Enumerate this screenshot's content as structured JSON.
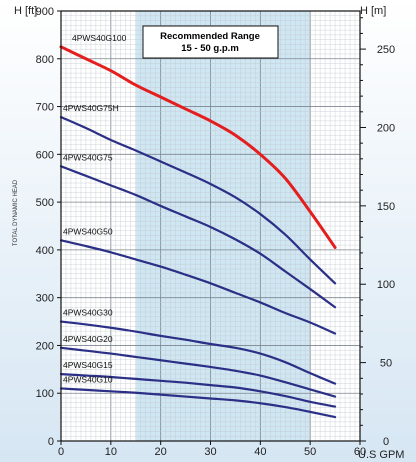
{
  "chart_data": {
    "type": "line",
    "y_left_label": "H [ft]",
    "y_right_label": "H [m]",
    "x_unit_label": "U.S GPM",
    "side_label": "TOTAL DYNAMIC HEAD",
    "xlim": [
      0,
      60
    ],
    "ylim_ft": [
      0,
      900
    ],
    "ylim_m": [
      0,
      274.3
    ],
    "x_ticks": [
      "0",
      "10",
      "20",
      "30",
      "40",
      "50",
      "60"
    ],
    "x_tick_values": [
      0,
      10,
      20,
      30,
      40,
      50,
      60
    ],
    "y_ticks_ft": [
      "0",
      "100",
      "200",
      "300",
      "400",
      "500",
      "600",
      "700",
      "800",
      "900"
    ],
    "y_tick_values_ft": [
      0,
      100,
      200,
      300,
      400,
      500,
      600,
      700,
      800,
      900
    ],
    "y_ticks_m": [
      "0",
      "50",
      "100",
      "150",
      "200",
      "250"
    ],
    "y_tick_values_m": [
      0,
      50,
      100,
      150,
      200,
      250
    ],
    "grid": true,
    "recommended_range": {
      "title": "Recommended Range",
      "subtitle": "15 - 50 g.p.m",
      "x_from": 15,
      "x_to": 50
    },
    "series": [
      {
        "name": "4PWS40G100",
        "color": "#e41e1e",
        "x": [
          0,
          5,
          10,
          15,
          20,
          25,
          30,
          35,
          40,
          45,
          50,
          55
        ],
        "y": [
          825,
          800,
          775,
          745,
          720,
          695,
          670,
          640,
          600,
          550,
          480,
          405
        ]
      },
      {
        "name": "4PWS40G75H",
        "color": "#2b2f86",
        "x": [
          0,
          5,
          10,
          15,
          20,
          25,
          30,
          35,
          40,
          45,
          50,
          55
        ],
        "y": [
          678,
          655,
          630,
          608,
          585,
          562,
          538,
          510,
          475,
          432,
          380,
          330
        ]
      },
      {
        "name": "4PWS40G75",
        "color": "#2b2f86",
        "x": [
          0,
          5,
          10,
          15,
          20,
          25,
          30,
          35,
          40,
          45,
          50,
          55
        ],
        "y": [
          575,
          555,
          535,
          515,
          492,
          470,
          448,
          422,
          392,
          355,
          318,
          280
        ]
      },
      {
        "name": "4PWS40G50",
        "color": "#2b2f86",
        "x": [
          0,
          5,
          10,
          15,
          20,
          25,
          30,
          35,
          40,
          45,
          50,
          55
        ],
        "y": [
          420,
          408,
          395,
          380,
          365,
          348,
          330,
          310,
          290,
          268,
          248,
          225
        ]
      },
      {
        "name": "4PWS40G30",
        "color": "#2b2f86",
        "x": [
          0,
          5,
          10,
          15,
          20,
          25,
          30,
          35,
          40,
          45,
          50,
          55
        ],
        "y": [
          250,
          244,
          237,
          229,
          220,
          212,
          203,
          195,
          183,
          165,
          142,
          120
        ]
      },
      {
        "name": "4PWS40G20",
        "color": "#2b2f86",
        "x": [
          0,
          5,
          10,
          15,
          20,
          25,
          30,
          35,
          40,
          45,
          50,
          55
        ],
        "y": [
          195,
          189,
          183,
          176,
          169,
          162,
          155,
          147,
          137,
          123,
          108,
          93
        ]
      },
      {
        "name": "4PWS40G15",
        "color": "#2b2f86",
        "x": [
          0,
          5,
          10,
          15,
          20,
          25,
          30,
          35,
          40,
          45,
          50,
          55
        ],
        "y": [
          140,
          137,
          134,
          130,
          126,
          122,
          117,
          112,
          104,
          94,
          82,
          72
        ]
      },
      {
        "name": "4PWS40G10",
        "color": "#2b2f86",
        "x": [
          0,
          5,
          10,
          15,
          20,
          25,
          30,
          35,
          40,
          45,
          50,
          55
        ],
        "y": [
          110,
          107,
          104,
          101,
          97,
          93,
          89,
          85,
          79,
          71,
          61,
          50
        ]
      }
    ]
  },
  "colors": {
    "band_fill": "#cfe6f3",
    "plot_bg": "#ffffff",
    "outer_bg": "#e3eef7",
    "grid_minor": "#c3c9cf",
    "grid_major": "#7c858e",
    "frame": "#111111"
  }
}
